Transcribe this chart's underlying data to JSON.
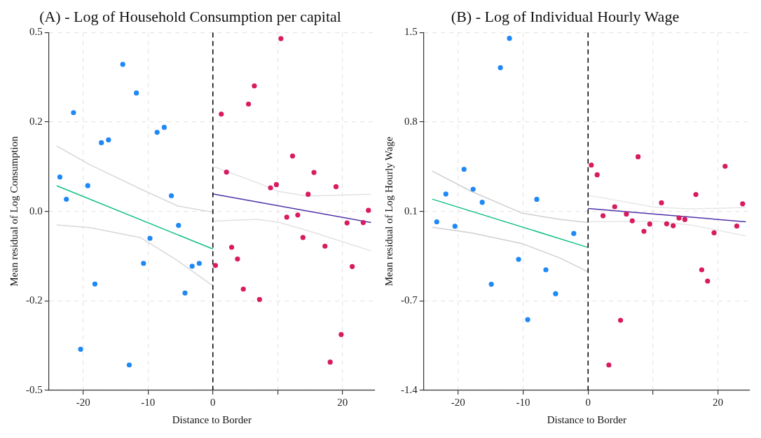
{
  "chart_data": [
    {
      "type": "scatter",
      "title": "(A) - Log of Household Consumption per capital",
      "xlabel": "Distance to Border",
      "ylabel": "Mean residual of Log Consumption",
      "xlim": [
        -25.3,
        25
      ],
      "xticks": [
        -20,
        -10,
        0,
        {
          "value": 10,
          "label": null
        },
        20
      ],
      "ylim": [
        -0.5,
        0.5
      ],
      "yticks": [
        -0.5,
        {
          "value": -0.25,
          "label": "-0.2"
        },
        {
          "value": 0,
          "label": "0.0"
        },
        {
          "value": 0.25,
          "label": "0.2"
        },
        0.5
      ],
      "grid": true,
      "legend": false,
      "ref_lines": [
        {
          "axis": "x",
          "value": 0,
          "color": "#000000",
          "line_style": "dashed"
        }
      ],
      "series": [
        {
          "marker": "circle",
          "color": "#1e88f5",
          "x": [
            -23.6,
            -22.6,
            -21.5,
            -20.4,
            -19.3,
            -18.2,
            -17.2,
            -16.1,
            -13.9,
            -12.9,
            -11.8,
            -10.7,
            -9.7,
            -8.6,
            -7.5,
            -6.4,
            -5.3,
            -4.3,
            -3.2,
            -2.1
          ],
          "values": [
            0.096,
            0.034,
            0.276,
            -0.385,
            0.072,
            -0.203,
            0.192,
            0.2,
            0.411,
            -0.429,
            0.331,
            -0.145,
            -0.075,
            0.221,
            0.235,
            0.044,
            -0.039,
            -0.228,
            -0.153,
            -0.145
          ]
        },
        {
          "marker": "circle",
          "color": "#d81b60",
          "x": [
            0.4,
            1.3,
            2.1,
            2.9,
            3.8,
            4.7,
            5.5,
            6.4,
            7.2,
            8.9,
            9.8,
            10.5,
            11.4,
            12.3,
            13.1,
            13.9,
            14.7,
            15.6,
            17.3,
            18.1,
            19.0,
            19.8,
            20.7,
            21.5,
            23.2,
            24.0
          ],
          "values": [
            -0.151,
            0.272,
            0.11,
            -0.1,
            -0.133,
            -0.217,
            0.3,
            0.351,
            -0.246,
            0.066,
            0.075,
            0.483,
            -0.016,
            0.155,
            -0.01,
            -0.073,
            0.048,
            0.109,
            -0.097,
            -0.421,
            0.069,
            -0.344,
            -0.032,
            -0.154,
            -0.031,
            0.003
          ]
        },
        {
          "type": "line",
          "marker": "none",
          "color": "#d8d8d8",
          "x": [
            -24.1,
            -19.0,
            -11.2,
            -5.4,
            0
          ],
          "values": [
            0.183,
            0.131,
            0.063,
            0.015,
            -0.002
          ]
        },
        {
          "type": "line",
          "marker": "none",
          "color": "#d8d8d8",
          "x": [
            -24.1,
            -19.0,
            -11.2,
            -5.4,
            0
          ],
          "values": [
            -0.038,
            -0.045,
            -0.073,
            -0.138,
            -0.208
          ]
        },
        {
          "type": "line",
          "marker": "none",
          "color": "#e2e2e2",
          "x": [
            0,
            6.9,
            10.1,
            14.5,
            24.4
          ],
          "values": [
            0.126,
            0.08,
            0.056,
            0.043,
            0.048
          ]
        },
        {
          "type": "line",
          "marker": "none",
          "color": "#e2e2e2",
          "x": [
            0,
            6.9,
            10.1,
            14.5,
            24.4
          ],
          "values": [
            -0.027,
            -0.022,
            -0.03,
            -0.053,
            -0.11
          ]
        },
        {
          "type": "line",
          "marker": "none",
          "color": "#10c080",
          "x": [
            -24.1,
            0
          ],
          "values": [
            0.072,
            -0.105
          ]
        },
        {
          "type": "line",
          "marker": "none",
          "color": "#5032a8",
          "x": [
            0,
            24.4
          ],
          "values": [
            0.049,
            -0.031
          ]
        }
      ]
    },
    {
      "type": "scatter",
      "title": "(B) - Log of Individual Hourly Wage",
      "xlabel": "Distance to Border",
      "ylabel": "Mean residual of Log Hourly Wage",
      "xlim": [
        -25.3,
        24.9
      ],
      "xticks": [
        -20,
        -10,
        0,
        {
          "value": 10,
          "label": null
        },
        20
      ],
      "ylim": [
        -1.4,
        1.5
      ],
      "yticks": [
        -1.4,
        {
          "value": -0.675,
          "label": "-0.7"
        },
        {
          "value": 0.05,
          "label": "0.1"
        },
        {
          "value": 0.775,
          "label": "0.8"
        },
        1.5
      ],
      "grid": true,
      "legend": false,
      "ref_lines": [
        {
          "axis": "x",
          "value": 0,
          "color": "#000000",
          "line_style": "dashed"
        }
      ],
      "series": [
        {
          "marker": "circle",
          "color": "#1e88f5",
          "x": [
            -23.3,
            -21.9,
            -20.5,
            -19.1,
            -17.7,
            -16.3,
            -14.9,
            -13.5,
            -12.1,
            -10.7,
            -9.3,
            -7.9,
            -6.5,
            -5.0,
            -2.2
          ],
          "values": [
            -0.034,
            0.191,
            -0.07,
            0.392,
            0.23,
            0.124,
            -0.54,
            1.215,
            1.453,
            -0.338,
            -0.827,
            0.148,
            -0.423,
            -0.617,
            -0.129
          ]
        },
        {
          "marker": "circle",
          "color": "#d81b60",
          "x": [
            0.5,
            1.4,
            2.3,
            3.2,
            4.1,
            5.0,
            5.9,
            6.8,
            7.7,
            8.6,
            9.5,
            11.3,
            12.1,
            13.1,
            14.0,
            14.9,
            16.6,
            17.5,
            18.4,
            19.4,
            21.1,
            22.9,
            23.8
          ],
          "values": [
            0.426,
            0.347,
            0.015,
            -1.194,
            0.088,
            -0.832,
            0.029,
            -0.026,
            0.493,
            -0.111,
            -0.052,
            0.12,
            -0.05,
            -0.066,
            -0.003,
            -0.015,
            0.187,
            -0.423,
            -0.514,
            -0.123,
            0.416,
            -0.068,
            0.112
          ]
        },
        {
          "type": "line",
          "marker": "none",
          "color": "#cfcfcf",
          "x": [
            -24.0,
            -18.0,
            -10.1,
            -4.2,
            0
          ],
          "values": [
            0.377,
            0.213,
            0.035,
            -0.015,
            -0.04
          ]
        },
        {
          "type": "line",
          "marker": "none",
          "color": "#cfcfcf",
          "x": [
            -24.0,
            -18.0,
            -10.1,
            -4.2,
            0
          ],
          "values": [
            -0.078,
            -0.123,
            -0.212,
            -0.33,
            -0.439
          ]
        },
        {
          "type": "line",
          "marker": "none",
          "color": "#e6e6e6",
          "x": [
            0,
            10.2,
            16.1,
            24.3
          ],
          "values": [
            0.181,
            0.085,
            0.07,
            0.082
          ]
        },
        {
          "type": "line",
          "marker": "none",
          "color": "#e6e6e6",
          "x": [
            0,
            10.2,
            16.1,
            24.3
          ],
          "values": [
            -0.034,
            -0.028,
            -0.063,
            -0.148
          ]
        },
        {
          "type": "line",
          "marker": "none",
          "color": "#10c080",
          "x": [
            -24.0,
            0
          ],
          "values": [
            0.15,
            -0.242
          ]
        },
        {
          "type": "line",
          "marker": "none",
          "color": "#5032a8",
          "x": [
            0,
            24.3
          ],
          "values": [
            0.074,
            -0.034
          ]
        }
      ]
    }
  ]
}
